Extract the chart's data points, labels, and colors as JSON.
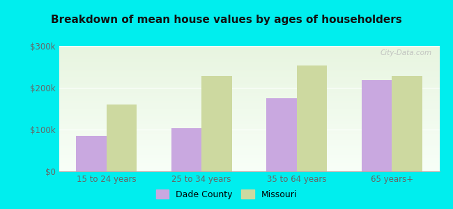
{
  "title": "Breakdown of mean house values by ages of householders",
  "categories": [
    "15 to 24 years",
    "25 to 34 years",
    "35 to 64 years",
    "65 years+"
  ],
  "dade_county": [
    85000,
    103000,
    175000,
    218000
  ],
  "missouri": [
    160000,
    228000,
    253000,
    228000
  ],
  "bar_color_dade": "#c9a8e0",
  "bar_color_missouri": "#cdd9a0",
  "background_color": "#00eeee",
  "ylim": [
    0,
    300000
  ],
  "yticks": [
    0,
    100000,
    200000,
    300000
  ],
  "ytick_labels": [
    "$0",
    "$100k",
    "$200k",
    "$300k"
  ],
  "legend_dade": "Dade County",
  "legend_missouri": "Missouri",
  "bar_width": 0.32,
  "title_fontsize": 11,
  "tick_fontsize": 8.5,
  "legend_fontsize": 9,
  "watermark": "City-Data.com"
}
